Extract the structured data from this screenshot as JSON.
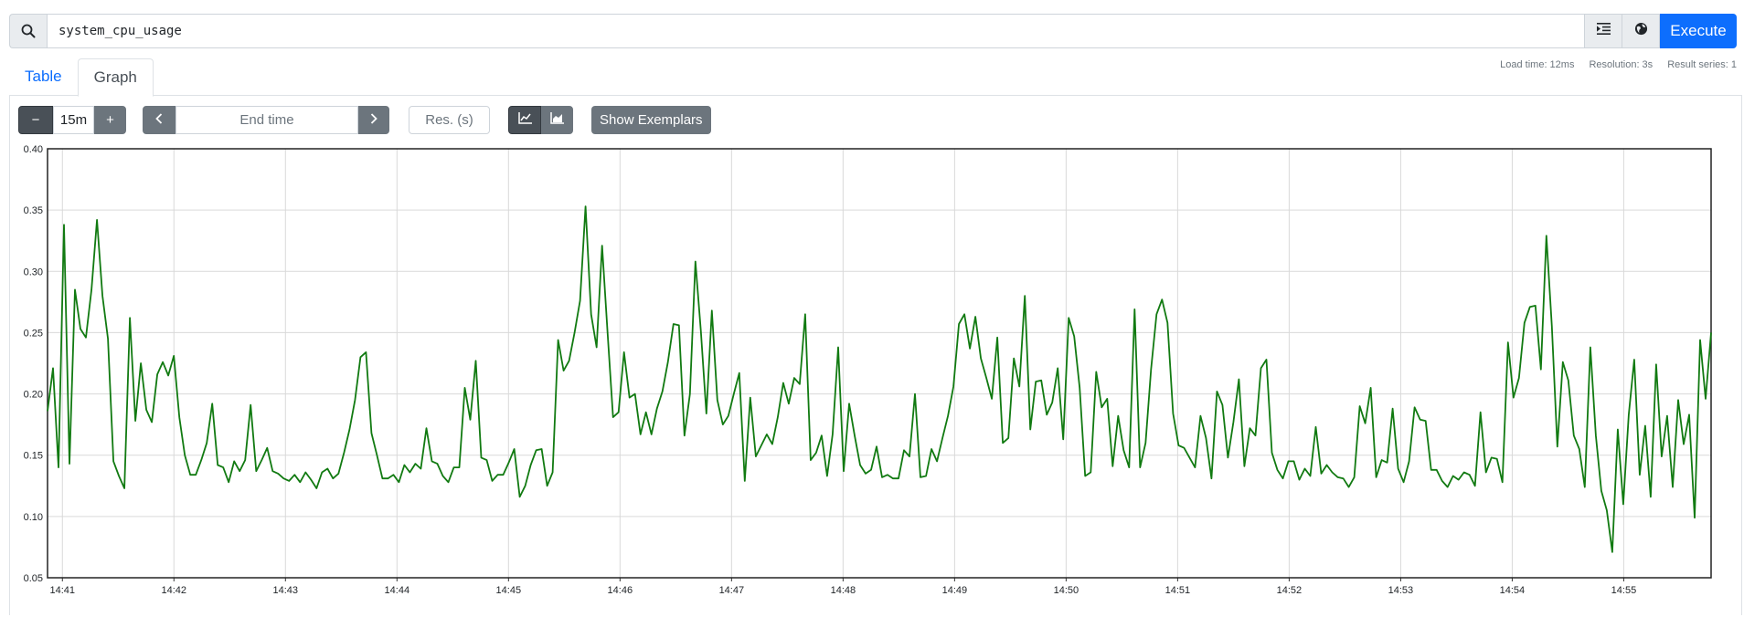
{
  "search": {
    "expression": "system_cpu_usage",
    "execute_label": "Execute"
  },
  "tabs": [
    {
      "label": "Table",
      "active": false
    },
    {
      "label": "Graph",
      "active": true
    }
  ],
  "stats": {
    "load_time": "Load time: 12ms",
    "resolution": "Resolution: 3s",
    "result_series": "Result series: 1"
  },
  "controls": {
    "range_minus": "−",
    "range_value": "15m",
    "range_plus": "+",
    "end_time_placeholder": "End time",
    "res_placeholder": "Res. (s)",
    "show_exemplars_label": "Show Exemplars"
  },
  "icons": {
    "search": "search-icon",
    "format": "format-indent-icon",
    "metrics_explorer": "globe-icon",
    "prev": "chevron-left-icon",
    "next": "chevron-right-icon",
    "line_chart": "line-chart-icon",
    "stacked_chart": "area-chart-icon"
  },
  "colors": {
    "accent": "#0d6efd",
    "series": "#117a11",
    "control": "#6c757d"
  },
  "chart_data": {
    "type": "line",
    "title": "",
    "xlabel": "",
    "ylabel": "",
    "ylim": [
      0.05,
      0.4
    ],
    "yticks": [
      "0.40",
      "0.35",
      "0.30",
      "0.25",
      "0.20",
      "0.15",
      "0.10",
      "0.05"
    ],
    "xticks": [
      "14:41",
      "14:42",
      "14:43",
      "14:44",
      "14:45",
      "14:46",
      "14:47",
      "14:48",
      "14:49",
      "14:50",
      "14:51",
      "14:52",
      "14:53",
      "14:54",
      "14:55"
    ],
    "x_start": "14:40:52",
    "x_end": "14:55:47",
    "step_seconds": 3,
    "grid": true,
    "series": [
      {
        "values": [
          0.186,
          0.221,
          0.14,
          0.338,
          0.143,
          0.285,
          0.253,
          0.246,
          0.285,
          0.342,
          0.28,
          0.245,
          0.145,
          0.133,
          0.123,
          0.262,
          0.178,
          0.225,
          0.187,
          0.177,
          0.216,
          0.226,
          0.215,
          0.231,
          0.181,
          0.15,
          0.134,
          0.134,
          0.146,
          0.16,
          0.192,
          0.142,
          0.14,
          0.128,
          0.145,
          0.137,
          0.146,
          0.191,
          0.137,
          0.146,
          0.156,
          0.137,
          0.135,
          0.131,
          0.129,
          0.134,
          0.128,
          0.136,
          0.13,
          0.123,
          0.136,
          0.139,
          0.131,
          0.135,
          0.152,
          0.171,
          0.195,
          0.23,
          0.234,
          0.168,
          0.15,
          0.131,
          0.131,
          0.134,
          0.128,
          0.142,
          0.136,
          0.143,
          0.139,
          0.172,
          0.145,
          0.143,
          0.133,
          0.128,
          0.14,
          0.14,
          0.205,
          0.179,
          0.227,
          0.148,
          0.146,
          0.129,
          0.134,
          0.134,
          0.144,
          0.155,
          0.116,
          0.125,
          0.142,
          0.154,
          0.155,
          0.125,
          0.136,
          0.244,
          0.219,
          0.227,
          0.25,
          0.276,
          0.353,
          0.265,
          0.238,
          0.321,
          0.25,
          0.181,
          0.185,
          0.234,
          0.197,
          0.2,
          0.167,
          0.185,
          0.167,
          0.188,
          0.202,
          0.226,
          0.257,
          0.256,
          0.166,
          0.2,
          0.308,
          0.251,
          0.184,
          0.268,
          0.195,
          0.175,
          0.182,
          0.2,
          0.217,
          0.129,
          0.197,
          0.149,
          0.158,
          0.167,
          0.159,
          0.181,
          0.209,
          0.192,
          0.213,
          0.208,
          0.265,
          0.146,
          0.152,
          0.166,
          0.133,
          0.167,
          0.238,
          0.137,
          0.192,
          0.166,
          0.142,
          0.135,
          0.138,
          0.157,
          0.132,
          0.134,
          0.131,
          0.131,
          0.154,
          0.149,
          0.2,
          0.132,
          0.133,
          0.155,
          0.145,
          0.164,
          0.182,
          0.206,
          0.257,
          0.265,
          0.237,
          0.263,
          0.229,
          0.213,
          0.196,
          0.246,
          0.16,
          0.164,
          0.229,
          0.206,
          0.28,
          0.171,
          0.21,
          0.211,
          0.183,
          0.193,
          0.221,
          0.163,
          0.262,
          0.247,
          0.205,
          0.133,
          0.136,
          0.218,
          0.189,
          0.196,
          0.141,
          0.182,
          0.154,
          0.14,
          0.269,
          0.14,
          0.16,
          0.22,
          0.265,
          0.277,
          0.258,
          0.184,
          0.158,
          0.156,
          0.148,
          0.14,
          0.182,
          0.164,
          0.131,
          0.202,
          0.191,
          0.148,
          0.177,
          0.212,
          0.141,
          0.172,
          0.166,
          0.221,
          0.228,
          0.152,
          0.138,
          0.131,
          0.145,
          0.145,
          0.13,
          0.139,
          0.133,
          0.173,
          0.135,
          0.142,
          0.136,
          0.132,
          0.131,
          0.124,
          0.132,
          0.19,
          0.176,
          0.205,
          0.132,
          0.146,
          0.144,
          0.188,
          0.139,
          0.128,
          0.145,
          0.189,
          0.179,
          0.178,
          0.138,
          0.138,
          0.129,
          0.124,
          0.133,
          0.13,
          0.136,
          0.134,
          0.125,
          0.185,
          0.136,
          0.148,
          0.147,
          0.128,
          0.242,
          0.197,
          0.213,
          0.258,
          0.271,
          0.272,
          0.22,
          0.329,
          0.255,
          0.157,
          0.226,
          0.211,
          0.166,
          0.155,
          0.124,
          0.238,
          0.166,
          0.121,
          0.105,
          0.071,
          0.171,
          0.11,
          0.183,
          0.228,
          0.134,
          0.174,
          0.116,
          0.224,
          0.149,
          0.182,
          0.124,
          0.195,
          0.159,
          0.183,
          0.099,
          0.244,
          0.196,
          0.25
        ]
      }
    ]
  }
}
